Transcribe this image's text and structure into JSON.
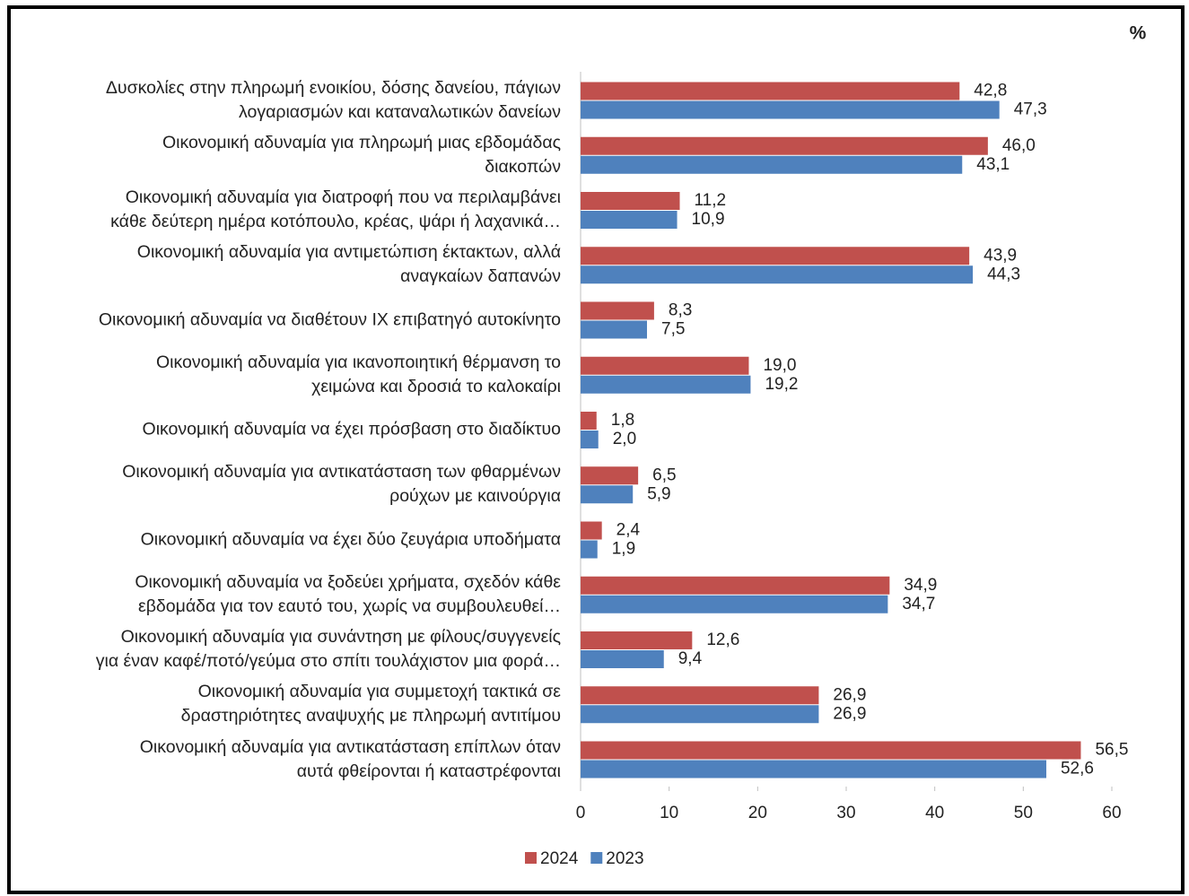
{
  "chart_data": {
    "type": "barh",
    "value_axis_label": "%",
    "categories": [
      "Δυσκολίες στην πληρωμή ενοικίου, δόσης δανείου, πάγιων\nλογαριασμών και καταναλωτικών δανείων",
      "Οικονομική αδυναμία για πληρωμή μιας εβδομάδας\nδιακοπών",
      "Οικονομική αδυναμία για διατροφή που να περιλαμβάνει\nκάθε δεύτερη ημέρα κοτόπουλο, κρέας, ψάρι ή λαχανικά…",
      "Οικονομική αδυναμία για αντιμετώπιση έκτακτων, αλλά\nαναγκαίων δαπανών",
      "Οικονομική αδυναμία να διαθέτουν ΙΧ επιβατηγό αυτοκίνητο",
      "Οικονομική αδυναμία για ικανοποιητική θέρμανση το\nχειμώνα και δροσιά το καλοκαίρι",
      "Οικονομική αδυναμία να έχει πρόσβαση στο διαδίκτυο",
      "Οικονομική αδυναμία για αντικατάσταση των φθαρμένων\nρούχων με καινούργια",
      "Οικονομική αδυναμία να έχει δύο ζευγάρια υποδήματα",
      "Οικονομική αδυναμία να ξοδεύει χρήματα, σχεδόν κάθε\nεβδομάδα για τον εαυτό του, χωρίς να συμβουλευθεί…",
      "Οικονομική αδυναμία για συνάντηση με φίλους/συγγενείς\nγια έναν καφέ/ποτό/γεύμα στο σπίτι τουλάχιστον μια φορά…",
      "Οικονομική αδυναμία για συμμετοχή τακτικά σε\nδραστηριότητες αναψυχής με πληρωμή αντιτίμου",
      "Οικονομική αδυναμία για αντικατάσταση επίπλων όταν\nαυτά φθείρονται ή καταστρέφονται"
    ],
    "series": [
      {
        "name": "2024",
        "color": "#c0504d",
        "values": [
          42.8,
          46.0,
          11.2,
          43.9,
          8.3,
          19.0,
          1.8,
          6.5,
          2.4,
          34.9,
          12.6,
          26.9,
          56.5
        ],
        "value_labels": [
          "42,8",
          "46,0",
          "11,2",
          "43,9",
          "8,3",
          "19,0",
          "1,8",
          "6,5",
          "2,4",
          "34,9",
          "12,6",
          "26,9",
          "56,5"
        ]
      },
      {
        "name": "2023",
        "color": "#4f81bd",
        "values": [
          47.3,
          43.1,
          10.9,
          44.3,
          7.5,
          19.2,
          2.0,
          5.9,
          1.9,
          34.7,
          9.4,
          26.9,
          52.6
        ],
        "value_labels": [
          "47,3",
          "43,1",
          "10,9",
          "44,3",
          "7,5",
          "19,2",
          "2,0",
          "5,9",
          "1,9",
          "34,7",
          "9,4",
          "26,9",
          "52,6"
        ]
      }
    ],
    "xlim": [
      0,
      60
    ],
    "xticks": [
      0,
      10,
      20,
      30,
      40,
      50,
      60
    ],
    "legend": "bottom"
  }
}
